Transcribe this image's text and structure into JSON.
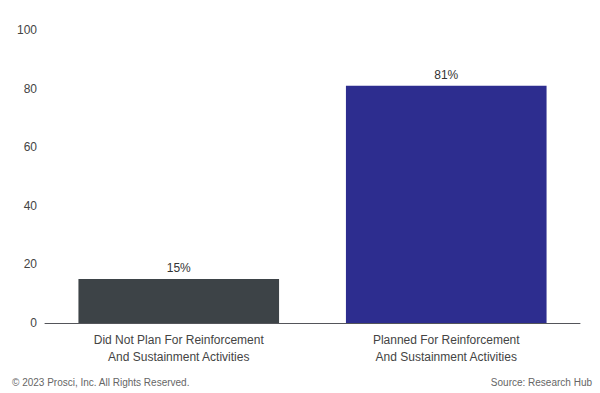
{
  "chart_data": {
    "type": "bar",
    "categories": [
      "Did Not Plan For Reinforcement\nAnd Sustainment Activities",
      "Planned For Reinforcement\nAnd Sustainment Activities"
    ],
    "values": [
      15,
      81
    ],
    "value_labels": [
      "15%",
      "81%"
    ],
    "data_labels": true,
    "colors": [
      "#3d4347",
      "#2d2d8f"
    ],
    "ylim": [
      0,
      100
    ],
    "yticks": [
      0,
      20,
      40,
      60,
      80,
      100
    ],
    "grid": false,
    "annotations": [
      "© 2023 Prosci, Inc. All Rights Reserved.",
      "Source: Research Hub"
    ]
  }
}
